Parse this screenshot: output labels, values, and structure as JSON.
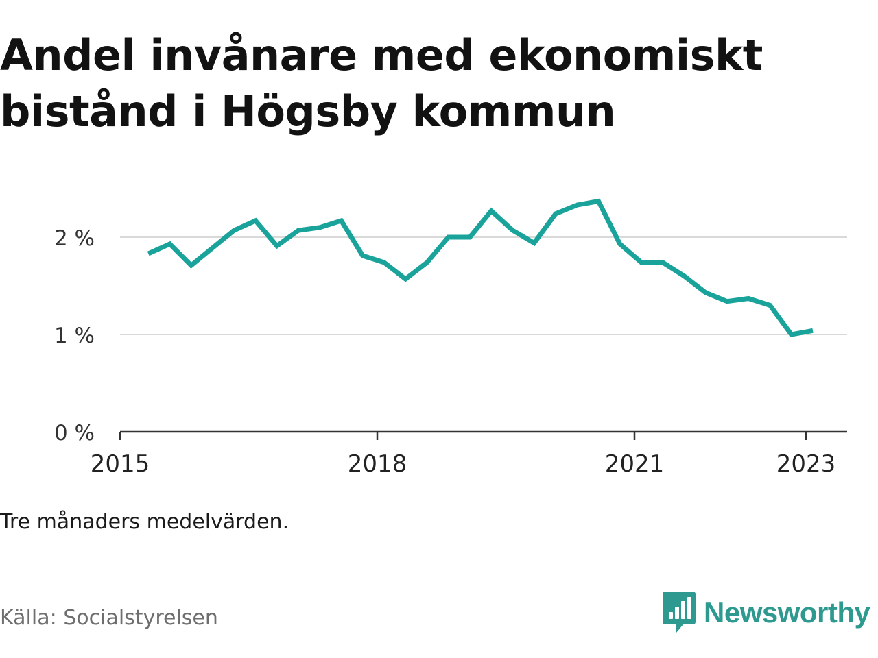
{
  "title": "Andel invånare med ekonomiskt bistånd i Högsby kommun",
  "note": "Tre månaders medelvärden.",
  "source": "Källa: Socialstyrelsen",
  "brand": {
    "name": "Newsworthy",
    "icon": "newsworthy-logo-icon",
    "color": "#2e9a8f"
  },
  "colors": {
    "line": "#1aa39a",
    "grid": "#d9d9d9",
    "axis": "#333333"
  },
  "chart_data": {
    "type": "line",
    "title": "Andel invånare med ekonomiskt bistånd i Högsby kommun",
    "xlabel": "",
    "ylabel": "",
    "ylim": [
      0,
      2.5
    ],
    "yticks": [
      0,
      1,
      2
    ],
    "ytick_labels": [
      "0 %",
      "1 %",
      "2 %"
    ],
    "xticks": [
      2015,
      2018,
      2021,
      2023
    ],
    "xtick_labels": [
      "2015",
      "2018",
      "2021",
      "2023"
    ],
    "grid": true,
    "x": [
      2015.33,
      2015.58,
      2015.83,
      2016.08,
      2016.33,
      2016.58,
      2016.83,
      2017.08,
      2017.33,
      2017.58,
      2017.83,
      2018.08,
      2018.33,
      2018.58,
      2018.83,
      2019.08,
      2019.33,
      2019.58,
      2019.83,
      2020.08,
      2020.33,
      2020.58,
      2020.83,
      2021.08,
      2021.33,
      2021.58,
      2021.83,
      2022.08,
      2022.33,
      2022.58,
      2022.83,
      2023.08
    ],
    "values": [
      1.83,
      1.93,
      1.71,
      1.89,
      2.07,
      2.17,
      1.91,
      2.07,
      2.1,
      2.17,
      1.81,
      1.74,
      1.57,
      1.74,
      2.0,
      2.0,
      2.27,
      2.07,
      1.94,
      2.24,
      2.33,
      2.37,
      1.93,
      1.74,
      1.74,
      1.6,
      1.43,
      1.34,
      1.37,
      1.3,
      1.0,
      1.04
    ]
  }
}
